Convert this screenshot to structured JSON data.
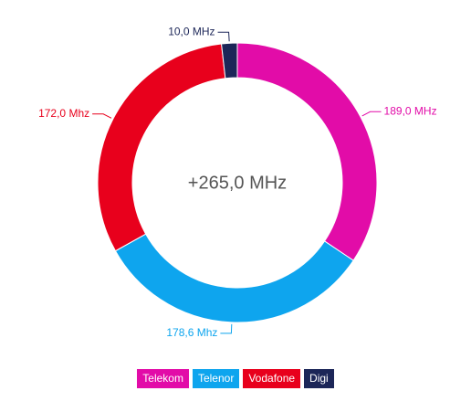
{
  "chart_data": {
    "type": "donut",
    "categories": [
      "Telekom",
      "Telenor",
      "Vodafone",
      "Digi"
    ],
    "values": [
      189.0,
      178.6,
      172.0,
      10.0
    ],
    "value_labels": [
      "189,0 MHz",
      "178,6 Mhz",
      "172,0 Mhz",
      "10,0 MHz"
    ],
    "colors": [
      "#e20ca8",
      "#0ea5ee",
      "#e8001c",
      "#1c2658"
    ],
    "center_label": "+265,0 MHz",
    "legend": "bottom"
  }
}
